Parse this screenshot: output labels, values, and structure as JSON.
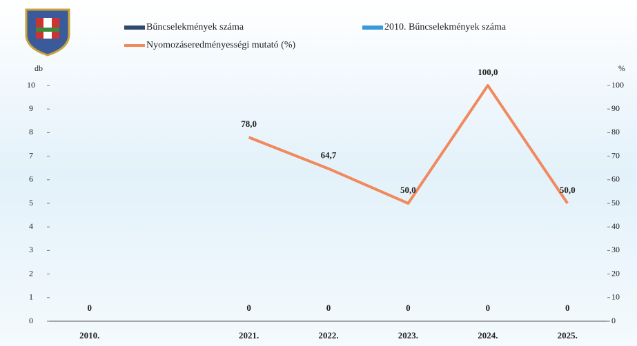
{
  "chart_data": {
    "type": "bar-line",
    "y_label": "db",
    "y2_label": "%",
    "categories": [
      "2010.",
      null,
      "2021.",
      "2022.",
      "2023.",
      "2024.",
      "2025."
    ],
    "series": [
      {
        "name": "Bűncselekmények száma",
        "type": "bar",
        "color": "#2f4a6b",
        "values": [
          null,
          null,
          0,
          0,
          0,
          0,
          0
        ]
      },
      {
        "name": "2010. Bűncselekmények száma",
        "type": "bar",
        "color": "#3a9ad9",
        "values": [
          0,
          null,
          null,
          null,
          null,
          null,
          null
        ]
      },
      {
        "name": "Nyomozáseredményességi mutató (%)",
        "type": "line",
        "axis": "y2",
        "color": "#f08a5d",
        "values": [
          null,
          null,
          78,
          64.7,
          50,
          100,
          50
        ],
        "value_labels": [
          null,
          null,
          "78,0",
          "64,7",
          "50,0",
          "100,0",
          "50,0"
        ]
      }
    ],
    "ylim": [
      0,
      10
    ],
    "yticks": [
      0,
      1,
      2,
      3,
      4,
      5,
      6,
      7,
      8,
      9,
      10
    ],
    "y2lim": [
      0,
      100
    ],
    "y2ticks": [
      0,
      10,
      20,
      30,
      40,
      50,
      60,
      70,
      80,
      90,
      100
    ]
  }
}
